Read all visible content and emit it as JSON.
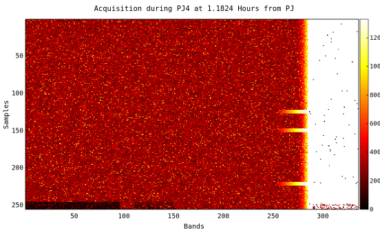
{
  "chart_data": {
    "type": "heatmap",
    "title": "Acquisition during PJ4 at 1.1824 Hours from PJ",
    "xlabel": "Bands",
    "ylabel": "Samples",
    "xlim": [
      1,
      336
    ],
    "ylim": [
      1,
      256
    ],
    "y_inverted": true,
    "x_ticks": [
      50,
      100,
      150,
      200,
      250,
      300
    ],
    "y_ticks": [
      50,
      100,
      150,
      200,
      250
    ],
    "colorbar": {
      "colormap": "hot",
      "range": [
        0,
        1330
      ],
      "ticks": [
        0,
        200,
        400,
        600,
        800,
        1000,
        1200
      ],
      "location": "right"
    },
    "grid": false,
    "description_of_values": {
      "bands_1_to_280": "noisy signal, mostly 150-400",
      "bands_285_to_336": "saturated, above 1200",
      "transition_band": 282,
      "bright_rows_extending_left": [
        125,
        150,
        222
      ],
      "dark_strip_rows": [
        247,
        256
      ],
      "dark_strip_bands": [
        1,
        95
      ]
    }
  }
}
